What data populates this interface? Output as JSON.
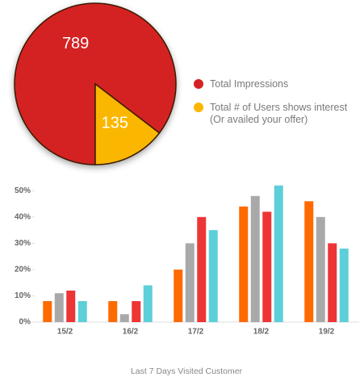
{
  "chart_data": [
    {
      "type": "pie",
      "categories": [
        "Total Impressions",
        "Total # of Users shows interest (Or availed your offer)"
      ],
      "values": [
        789,
        135
      ],
      "colors": [
        "#d42222",
        "#fbb700"
      ]
    },
    {
      "type": "bar",
      "categories": [
        "15/2",
        "16/2",
        "17/2",
        "18/2",
        "19/2"
      ],
      "series": [
        {
          "color": "#ff6a00",
          "values": [
            8,
            8,
            20,
            44,
            46
          ]
        },
        {
          "color": "#a9a9a9",
          "values": [
            11,
            3,
            30,
            48,
            40
          ]
        },
        {
          "color": "#ee3535",
          "values": [
            12,
            8,
            40,
            42,
            30
          ]
        },
        {
          "color": "#5dcfd8",
          "values": [
            8,
            14,
            35,
            52,
            28
          ]
        }
      ],
      "ylim": [
        0,
        55
      ],
      "yticks": [
        {
          "value": 0,
          "label": "0%"
        },
        {
          "value": 10,
          "label": "10%"
        },
        {
          "value": 20,
          "label": "20%"
        },
        {
          "value": 30,
          "label": "30%"
        },
        {
          "value": 40,
          "label": "40%"
        },
        {
          "value": 50,
          "label": "50%"
        }
      ],
      "xlabel": "Last 7 Days Visited Customer"
    }
  ]
}
